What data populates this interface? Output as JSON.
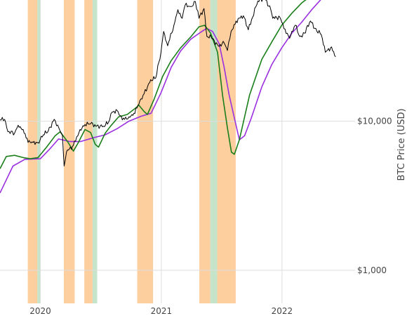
{
  "chart_data": {
    "type": "line",
    "title": "",
    "xlabel": "",
    "ylabel": "BTC Price (USD)",
    "y_scale": "log",
    "xlim": [
      "2019-09-01",
      "2022-08-10"
    ],
    "ylim": [
      600,
      65000
    ],
    "grid": true,
    "legend": "none",
    "x_ticks": [
      {
        "date": "2020-01-01",
        "label": "2020"
      },
      {
        "date": "2021-01-01",
        "label": "2021"
      },
      {
        "date": "2022-01-01",
        "label": "2022"
      }
    ],
    "y_ticks": [
      {
        "value": 1000,
        "label": "$1,000"
      },
      {
        "value": 10000,
        "label": "$10,000"
      }
    ],
    "colors": {
      "orange_band": "#fdcf9f",
      "green_band": "#c6e4c9",
      "price": "#000000",
      "fast_ma": "#1a7f1a",
      "slow_ma": "#9b30e0",
      "grid": "#dddddd"
    },
    "bands": [
      {
        "start": "2019-11-24",
        "end": "2019-12-23",
        "color": "orange"
      },
      {
        "start": "2019-12-23",
        "end": "2019-12-31",
        "color": "green"
      },
      {
        "start": "2020-03-12",
        "end": "2020-04-14",
        "color": "orange"
      },
      {
        "start": "2020-05-13",
        "end": "2020-06-07",
        "color": "orange"
      },
      {
        "start": "2020-06-07",
        "end": "2020-06-21",
        "color": "green"
      },
      {
        "start": "2020-10-20",
        "end": "2020-12-07",
        "color": "orange"
      },
      {
        "start": "2021-04-26",
        "end": "2021-05-29",
        "color": "orange"
      },
      {
        "start": "2021-05-29",
        "end": "2021-06-19",
        "color": "green"
      },
      {
        "start": "2021-06-19",
        "end": "2021-08-14",
        "color": "orange"
      }
    ],
    "series": [
      {
        "key": "price",
        "points": [
          [
            "2019-09-01",
            10200
          ],
          [
            "2019-09-15",
            10300
          ],
          [
            "2019-09-25",
            8500
          ],
          [
            "2019-10-15",
            8300
          ],
          [
            "2019-10-26",
            9400
          ],
          [
            "2019-11-10",
            8800
          ],
          [
            "2019-11-25",
            7200
          ],
          [
            "2019-12-10",
            7200
          ],
          [
            "2019-12-25",
            7200
          ],
          [
            "2020-01-10",
            8100
          ],
          [
            "2020-01-25",
            8600
          ],
          [
            "2020-02-12",
            10300
          ],
          [
            "2020-02-26",
            9000
          ],
          [
            "2020-03-08",
            8000
          ],
          [
            "2020-03-13",
            5000
          ],
          [
            "2020-03-20",
            6200
          ],
          [
            "2020-04-10",
            6900
          ],
          [
            "2020-04-30",
            8800
          ],
          [
            "2020-05-15",
            9500
          ],
          [
            "2020-06-01",
            9600
          ],
          [
            "2020-06-20",
            9300
          ],
          [
            "2020-07-10",
            9250
          ],
          [
            "2020-07-25",
            9800
          ],
          [
            "2020-08-05",
            11500
          ],
          [
            "2020-08-20",
            11800
          ],
          [
            "2020-09-05",
            10200
          ],
          [
            "2020-09-25",
            10700
          ],
          [
            "2020-10-10",
            11300
          ],
          [
            "2020-10-25",
            13000
          ],
          [
            "2020-11-10",
            15300
          ],
          [
            "2020-11-30",
            19000
          ],
          [
            "2020-12-15",
            19500
          ],
          [
            "2020-12-31",
            29000
          ],
          [
            "2021-01-08",
            40000
          ],
          [
            "2021-01-20",
            32000
          ],
          [
            "2021-02-08",
            44000
          ],
          [
            "2021-02-20",
            56000
          ],
          [
            "2021-03-05",
            49000
          ],
          [
            "2021-03-14",
            60000
          ],
          [
            "2021-03-31",
            58800
          ],
          [
            "2021-04-14",
            63500
          ],
          [
            "2021-04-25",
            49000
          ],
          [
            "2021-05-10",
            57000
          ],
          [
            "2021-05-19",
            37000
          ],
          [
            "2021-06-01",
            36500
          ],
          [
            "2021-06-22",
            32000
          ],
          [
            "2021-07-10",
            33500
          ],
          [
            "2021-07-20",
            29800
          ],
          [
            "2021-07-31",
            40000
          ],
          [
            "2021-08-15",
            47000
          ],
          [
            "2021-09-06",
            51000
          ],
          [
            "2021-09-21",
            41000
          ],
          [
            "2021-10-01",
            48000
          ],
          [
            "2021-10-20",
            64000
          ],
          [
            "2021-11-10",
            67000
          ],
          [
            "2021-11-28",
            56000
          ],
          [
            "2021-12-04",
            49000
          ],
          [
            "2021-12-25",
            50000
          ],
          [
            "2022-01-10",
            41500
          ],
          [
            "2022-01-24",
            36000
          ],
          [
            "2022-02-10",
            44000
          ],
          [
            "2022-02-24",
            37000
          ],
          [
            "2022-03-10",
            39000
          ],
          [
            "2022-03-28",
            47000
          ],
          [
            "2022-04-10",
            42000
          ],
          [
            "2022-04-30",
            38000
          ],
          [
            "2022-05-12",
            29000
          ],
          [
            "2022-05-31",
            31500
          ],
          [
            "2022-06-12",
            27000
          ]
        ]
      },
      {
        "key": "fast_ma",
        "points": [
          [
            "2019-09-01",
            4800
          ],
          [
            "2019-09-20",
            5800
          ],
          [
            "2019-10-15",
            5900
          ],
          [
            "2019-11-10",
            5700
          ],
          [
            "2019-12-01",
            5600
          ],
          [
            "2019-12-25",
            5700
          ],
          [
            "2020-01-20",
            6700
          ],
          [
            "2020-02-15",
            8000
          ],
          [
            "2020-03-01",
            8500
          ],
          [
            "2020-03-25",
            7200
          ],
          [
            "2020-04-10",
            6300
          ],
          [
            "2020-04-25",
            7200
          ],
          [
            "2020-05-15",
            8800
          ],
          [
            "2020-06-01",
            8400
          ],
          [
            "2020-06-15",
            7000
          ],
          [
            "2020-06-25",
            6700
          ],
          [
            "2020-07-15",
            8300
          ],
          [
            "2020-08-01",
            9300
          ],
          [
            "2020-08-25",
            10700
          ],
          [
            "2020-09-20",
            11100
          ],
          [
            "2020-10-10",
            12000
          ],
          [
            "2020-10-25",
            12800
          ],
          [
            "2020-11-10",
            11600
          ],
          [
            "2020-11-20",
            11100
          ],
          [
            "2020-12-10",
            14000
          ],
          [
            "2021-01-05",
            20000
          ],
          [
            "2021-01-31",
            25500
          ],
          [
            "2021-02-28",
            31000
          ],
          [
            "2021-04-01",
            37000
          ],
          [
            "2021-04-25",
            43000
          ],
          [
            "2021-05-12",
            44000
          ],
          [
            "2021-05-30",
            39000
          ],
          [
            "2021-06-20",
            29000
          ],
          [
            "2021-07-05",
            15000
          ],
          [
            "2021-07-20",
            9000
          ],
          [
            "2021-08-01",
            6200
          ],
          [
            "2021-08-10",
            6000
          ],
          [
            "2021-08-25",
            7500
          ],
          [
            "2021-09-25",
            15000
          ],
          [
            "2021-11-01",
            26000
          ],
          [
            "2021-12-01",
            34000
          ],
          [
            "2021-12-31",
            44000
          ],
          [
            "2022-01-31",
            53000
          ],
          [
            "2022-03-01",
            62000
          ],
          [
            "2022-04-01",
            70000
          ]
        ]
      },
      {
        "key": "slow_ma",
        "points": [
          [
            "2019-09-01",
            3300
          ],
          [
            "2019-10-10",
            5000
          ],
          [
            "2019-11-15",
            5550
          ],
          [
            "2020-01-01",
            5600
          ],
          [
            "2020-02-01",
            6600
          ],
          [
            "2020-02-25",
            7600
          ],
          [
            "2020-03-31",
            7300
          ],
          [
            "2020-05-01",
            7300
          ],
          [
            "2020-06-15",
            7800
          ],
          [
            "2020-07-15",
            8100
          ],
          [
            "2020-08-20",
            8900
          ],
          [
            "2020-09-25",
            10000
          ],
          [
            "2020-11-01",
            10800
          ],
          [
            "2020-12-01",
            11300
          ],
          [
            "2020-12-31",
            15500
          ],
          [
            "2021-01-31",
            23000
          ],
          [
            "2021-02-28",
            29500
          ],
          [
            "2021-03-31",
            35500
          ],
          [
            "2021-04-30",
            39500
          ],
          [
            "2021-05-18",
            42000
          ],
          [
            "2021-06-05",
            40000
          ],
          [
            "2021-06-25",
            33000
          ],
          [
            "2021-07-10",
            23000
          ],
          [
            "2021-07-25",
            15000
          ],
          [
            "2021-08-10",
            10500
          ],
          [
            "2021-08-25",
            7500
          ],
          [
            "2021-09-10",
            8000
          ],
          [
            "2021-09-30",
            10500
          ],
          [
            "2021-11-01",
            17000
          ],
          [
            "2021-12-01",
            24000
          ],
          [
            "2021-12-31",
            31000
          ],
          [
            "2022-01-31",
            39000
          ],
          [
            "2022-03-01",
            46000
          ],
          [
            "2022-04-01",
            56000
          ],
          [
            "2022-04-30",
            66000
          ]
        ]
      }
    ]
  }
}
